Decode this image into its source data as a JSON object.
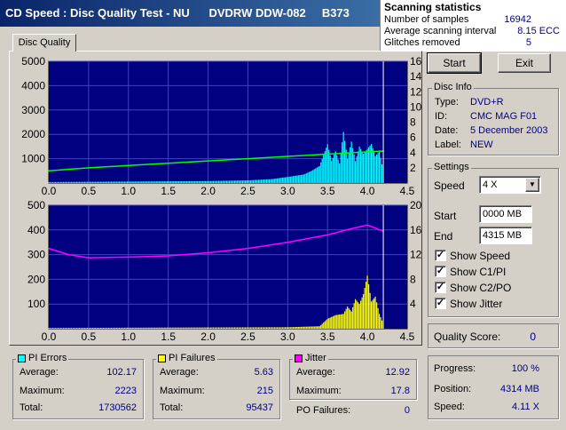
{
  "window": {
    "title": "CD Speed : Disc Quality Test - NU      DVDRW DDW-082     B373"
  },
  "scan_stats": {
    "heading": "Scanning statistics",
    "rows": [
      {
        "label": "Number of samples",
        "value": "16942"
      },
      {
        "label": "Average scanning interval",
        "value": "8.15 ECC"
      },
      {
        "label": "Glitches removed",
        "value": "5"
      }
    ]
  },
  "tabs": [
    {
      "label": "Disc Quality"
    }
  ],
  "buttons": {
    "start": "Start",
    "exit": "Exit"
  },
  "disc_info": {
    "title": "Disc Info",
    "rows": [
      {
        "label": "Type:",
        "value": "DVD+R"
      },
      {
        "label": "ID:",
        "value": "CMC MAG F01"
      },
      {
        "label": "Date:",
        "value": "5 December 2003"
      },
      {
        "label": "Label:",
        "value": "NEW"
      }
    ]
  },
  "settings": {
    "title": "Settings",
    "speed_label": "Speed",
    "speed_value": "4 X",
    "start_label": "Start",
    "start_value": "0000 MB",
    "end_label": "End",
    "end_value": "4315 MB",
    "checkboxes": [
      {
        "label": "Show Speed",
        "checked": true
      },
      {
        "label": "Show C1/PI",
        "checked": true
      },
      {
        "label": "Show C2/PO",
        "checked": true
      },
      {
        "label": "Show Jitter",
        "checked": true
      }
    ]
  },
  "quality": {
    "label": "Quality Score:",
    "value": "0"
  },
  "progress": {
    "rows": [
      {
        "label": "Progress:",
        "value": "100 %"
      },
      {
        "label": "Position:",
        "value": "4314 MB"
      },
      {
        "label": "Speed:",
        "value": "4.11 X"
      }
    ]
  },
  "pi_errors": {
    "title": "PI Errors",
    "color": "#00ffff",
    "rows": [
      {
        "label": "Average:",
        "value": "102.17"
      },
      {
        "label": "Maximum:",
        "value": "2223"
      },
      {
        "label": "Total:",
        "value": "1730562"
      }
    ]
  },
  "pi_failures": {
    "title": "PI Failures",
    "color": "#ffff00",
    "rows": [
      {
        "label": "Average:",
        "value": "5.63"
      },
      {
        "label": "Maximum:",
        "value": "215"
      },
      {
        "label": "Total:",
        "value": "95437"
      }
    ]
  },
  "jitter": {
    "title": "Jitter",
    "color": "#ff00ff",
    "rows": [
      {
        "label": "Average:",
        "value": "12.92"
      },
      {
        "label": "Maximum:",
        "value": "17.8"
      }
    ]
  },
  "po_failures": {
    "label": "PO Failures:",
    "value": "0"
  },
  "chart_data": [
    {
      "type": "area",
      "x_ticks": [
        "0.0",
        "0.5",
        "1.0",
        "1.5",
        "2.0",
        "2.5",
        "3.0",
        "3.5",
        "4.0",
        "4.5"
      ],
      "xlim": [
        0,
        4.5
      ],
      "y_left_ticks": [
        "5000",
        "4000",
        "3000",
        "2000",
        "1000"
      ],
      "ylim_left": [
        0,
        5000
      ],
      "y_right_ticks": [
        "16",
        "14",
        "12",
        "10",
        "8",
        "6",
        "4",
        "2"
      ],
      "ylim_right": [
        0,
        16
      ],
      "grid": true,
      "end_marker_x": 4.2,
      "series": [
        {
          "color": "#00ffff",
          "axis": "left",
          "style": "bars",
          "x": [
            0.0,
            0.5,
            1.0,
            1.5,
            2.0,
            2.5,
            2.8,
            3.0,
            3.2,
            3.3,
            3.4,
            3.5,
            3.55,
            3.6,
            3.65,
            3.7,
            3.75,
            3.8,
            3.85,
            3.9,
            3.95,
            4.0,
            4.05,
            4.1,
            4.15,
            4.2
          ],
          "values": [
            40,
            50,
            60,
            70,
            80,
            110,
            160,
            250,
            350,
            500,
            700,
            1600,
            900,
            1300,
            800,
            2100,
            1000,
            1700,
            900,
            1500,
            1200,
            1400,
            1600,
            1100,
            1300,
            500
          ]
        },
        {
          "color": "#00ff00",
          "axis": "right",
          "style": "line",
          "x": [
            0.0,
            0.5,
            1.0,
            1.5,
            2.0,
            2.5,
            3.0,
            3.5,
            4.0,
            4.2
          ],
          "values": [
            1.6,
            2.0,
            2.3,
            2.6,
            2.9,
            3.2,
            3.5,
            3.8,
            4.1,
            4.2
          ]
        }
      ]
    },
    {
      "type": "area",
      "x_ticks": [
        "0.0",
        "0.5",
        "1.0",
        "1.5",
        "2.0",
        "2.5",
        "3.0",
        "3.5",
        "4.0",
        "4.5"
      ],
      "xlim": [
        0,
        4.5
      ],
      "y_left_ticks": [
        "500",
        "400",
        "300",
        "200",
        "100"
      ],
      "ylim_left": [
        0,
        500
      ],
      "y_right_ticks": [
        "20",
        "16",
        "12",
        "8",
        "4"
      ],
      "ylim_right": [
        0,
        20
      ],
      "grid": true,
      "end_marker_x": 4.2,
      "series": [
        {
          "color": "#ffff00",
          "axis": "left",
          "style": "bars",
          "x": [
            0.0,
            1.0,
            2.0,
            3.0,
            3.4,
            3.5,
            3.6,
            3.7,
            3.75,
            3.8,
            3.85,
            3.9,
            3.95,
            4.0,
            4.05,
            4.1,
            4.15,
            4.2
          ],
          "values": [
            3,
            4,
            5,
            6,
            10,
            40,
            55,
            60,
            90,
            70,
            120,
            100,
            140,
            215,
            110,
            130,
            60,
            20
          ]
        },
        {
          "color": "#ff00ff",
          "axis": "right",
          "style": "line",
          "x": [
            0.0,
            0.25,
            0.5,
            1.0,
            1.5,
            2.0,
            2.5,
            3.0,
            3.5,
            3.8,
            4.0,
            4.2
          ],
          "values": [
            13.0,
            12.0,
            11.5,
            11.6,
            11.8,
            12.3,
            13.0,
            14.0,
            15.2,
            16.2,
            16.8,
            15.8
          ]
        }
      ]
    }
  ]
}
